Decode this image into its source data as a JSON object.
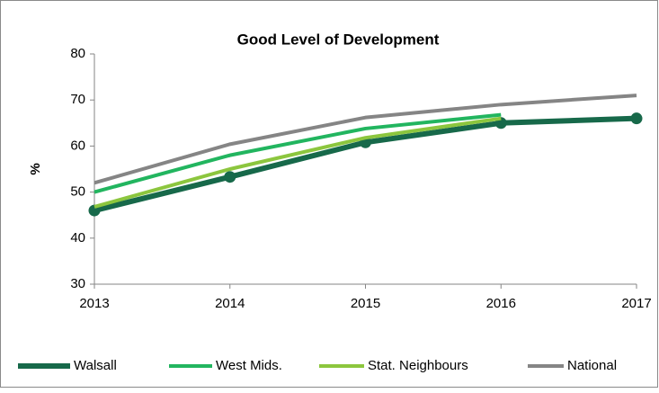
{
  "chart_data": {
    "type": "line",
    "title": "Good Level of Development",
    "y_label": "%",
    "x": [
      2013,
      2014,
      2015,
      2016,
      2017
    ],
    "xlim": [
      2013,
      2017
    ],
    "xticks": [
      2013,
      2014,
      2015,
      2016,
      2017
    ],
    "ylim": [
      30,
      80
    ],
    "yticks": [
      30,
      40,
      50,
      60,
      70,
      80
    ],
    "grid": false,
    "legend": "bottom",
    "series": [
      {
        "name": "Walsall",
        "color": "#17694a",
        "values": [
          46,
          53.3,
          60.8,
          65,
          66
        ],
        "markers": true
      },
      {
        "name": "West Mids.",
        "color": "#22b55f",
        "values": [
          50,
          58,
          63.8,
          66.8,
          null
        ]
      },
      {
        "name": "Stat. Neighbours",
        "color": "#8cc63e",
        "values": [
          46.8,
          55,
          61.8,
          66,
          null
        ]
      },
      {
        "name": "National",
        "color": "#858585",
        "values": [
          52,
          60.4,
          66.2,
          69,
          71
        ]
      }
    ]
  }
}
